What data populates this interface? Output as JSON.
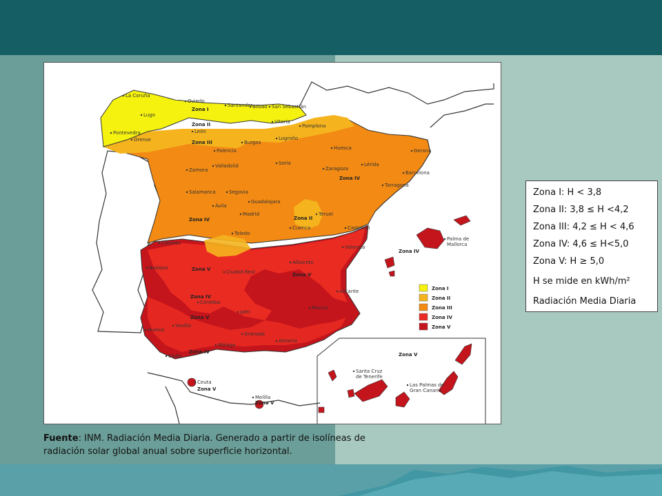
{
  "legend": {
    "zone_ranges": [
      "Zona I: H < 3,8",
      "Zona II: 3,8 ≤ H <4,2",
      "Zona III: 4,2 ≤ H < 4,6",
      "Zona IV: 4,6 ≤ H<5,0",
      "Zona V: H ≥ 5,0"
    ],
    "unit_note": "H se mide en kWh/m²",
    "title": "Radiación Media Diaria"
  },
  "caption": {
    "source_label": "Fuente",
    "text": ": INM. Radiación Media Diaria. Generado a partir de isolíneas de radiación solar global anual sobre superficie horizontal."
  },
  "map": {
    "zone_colors": {
      "I": "#f5f20f",
      "II": "#f5b41e",
      "III": "#f28a14",
      "IV": "#ea2b22",
      "V": "#c4141c"
    },
    "inset_legend": [
      "Zona I",
      "Zona II",
      "Zona III",
      "Zona IV",
      "Zona V"
    ],
    "cities": {
      "la_coruna": "La Coruña",
      "oviedo": "Oviedo",
      "santander": "Santander",
      "bilbao": "Bilbao",
      "san_sebastian": "San Sebastián",
      "lugo": "Lugo",
      "vitoria": "Vitoria",
      "pamplona": "Pamplona",
      "leon": "León",
      "pontevedra": "Pontevedra",
      "orense": "Orense",
      "burgos": "Burgos",
      "logrono": "Logroño",
      "palencia": "Palencia",
      "huesca": "Huesca",
      "gerona": "Gerona",
      "zamora": "Zamora",
      "valladolid": "Valladolid",
      "soria": "Soria",
      "zaragoza": "Zaragoza",
      "lerida": "Lérida",
      "barcelona": "Barcelona",
      "tarragona": "Tarragona",
      "salamanca": "Salamanca",
      "segovia": "Segovia",
      "guadalajara": "Guadalajara",
      "avila": "Ávila",
      "madrid": "Madrid",
      "teruel": "Teruel",
      "cuenca": "Cuenca",
      "castellon": "Castellón",
      "toledo": "Toledo",
      "caceres": "Cáceres",
      "valencia": "Valencia",
      "palma": "Palma de Mallorca",
      "badajoz": "Badajoz",
      "ciudad_real": "Ciudad Real",
      "albacete": "Albacete",
      "alicante": "Alicante",
      "cordoba": "Córdoba",
      "jaen": "Jaén",
      "murcia": "Murcia",
      "huelva": "Huelva",
      "sevilla": "Sevilla",
      "granada": "Granada",
      "malaga": "Málaga",
      "almeria": "Almería",
      "cadiz": "Cádiz",
      "ceuta": "Ceuta",
      "melilla": "Melilla",
      "santa_cruz": "Santa Cruz de Tenerife",
      "las_palmas": "Las Palmas de Gran Canaria"
    },
    "zone_labels": {
      "zona_i": "Zona I",
      "zona_ii_north": "Zona II",
      "zona_iii_north": "Zona III",
      "zona_iv_ebro": "Zona IV",
      "zona_ii_teruel": "Zona II",
      "zona_iv_center": "Zona IV",
      "zona_iv_baleares": "Zona IV",
      "zona_v_badajoz": "Zona V",
      "zona_v_albacete": "Zona V",
      "zona_iv_south": "Zona IV",
      "zona_v_south": "Zona V",
      "zona_iv_cadiz": "Zona IV",
      "zona_v_canarias": "Zona V",
      "zona_v_ceuta": "Zona V",
      "zona_v_melilla": "Zona V"
    }
  }
}
